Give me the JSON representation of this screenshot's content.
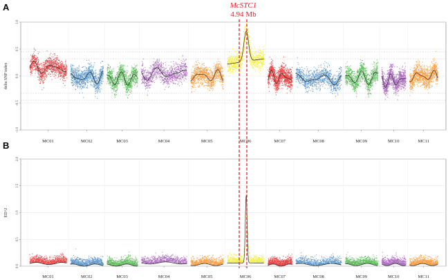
{
  "annotation": {
    "gene": "McSTC1",
    "position": "4.94 Mb",
    "color": "#e0202a"
  },
  "chart_data": [
    {
      "panel": "A",
      "type": "scatter",
      "ylabel": "delta SNP index",
      "ylim": [
        -1.0,
        1.0
      ],
      "yticks": [
        -1.0,
        -0.5,
        0.0,
        0.5,
        1.0
      ],
      "ytick_labels": [
        "-1.0",
        "-0.5",
        "0.0",
        "0.5",
        "1.0"
      ],
      "grid": true,
      "categories": [
        "MC01",
        "MC02",
        "MC03",
        "MC04",
        "MC05",
        "MC06",
        "MC07",
        "MC08",
        "MC09",
        "MC10",
        "MC11"
      ],
      "colors": [
        "#e31a1c",
        "#3a7fc1",
        "#3cae3a",
        "#9b4fb3",
        "#f78a1d",
        "#f0ea1c",
        "#e31a1c",
        "#3a7fc1",
        "#3cae3a",
        "#9b4fb3",
        "#f78a1d"
      ],
      "chromosome_lengths": [
        9.5,
        8.5,
        8.0,
        11.5,
        8.5,
        9.5,
        6.5,
        11.5,
        8.5,
        6.5,
        7.5
      ],
      "trend": [
        0.15,
        -0.02,
        -0.05,
        0.05,
        0.0,
        0.22,
        -0.02,
        -0.05,
        -0.03,
        -0.08,
        0.0
      ],
      "peak": {
        "chromosome": "MC06",
        "position_mb": 4.94,
        "value": 0.78
      },
      "threshold_lines": [
        0.32,
        -0.32,
        0.45,
        -0.45
      ]
    },
    {
      "panel": "B",
      "type": "scatter",
      "ylabel": "ED^2",
      "ylim": [
        0.0,
        2.0
      ],
      "yticks": [
        0.0,
        0.5,
        1.0,
        1.5,
        2.0
      ],
      "ytick_labels": [
        "0.0",
        "0.5",
        "1.0",
        "1.5",
        "2.0"
      ],
      "grid": true,
      "categories": [
        "MC01",
        "MC02",
        "MC03",
        "MC04",
        "MC05",
        "MC06",
        "MC07",
        "MC08",
        "MC09",
        "MC10",
        "MC11"
      ],
      "colors": [
        "#e31a1c",
        "#3a7fc1",
        "#3cae3a",
        "#9b4fb3",
        "#f78a1d",
        "#f0ea1c",
        "#e31a1c",
        "#3a7fc1",
        "#3cae3a",
        "#9b4fb3",
        "#f78a1d"
      ],
      "chromosome_lengths": [
        9.5,
        8.5,
        8.0,
        11.5,
        8.5,
        9.5,
        6.5,
        11.5,
        8.5,
        6.5,
        7.5
      ],
      "trend": [
        0.05,
        0.02,
        0.02,
        0.06,
        0.03,
        0.06,
        0.02,
        0.03,
        0.03,
        0.03,
        0.03
      ],
      "peak": {
        "chromosome": "MC06",
        "position_mb": 4.94,
        "value": 1.32
      }
    }
  ]
}
